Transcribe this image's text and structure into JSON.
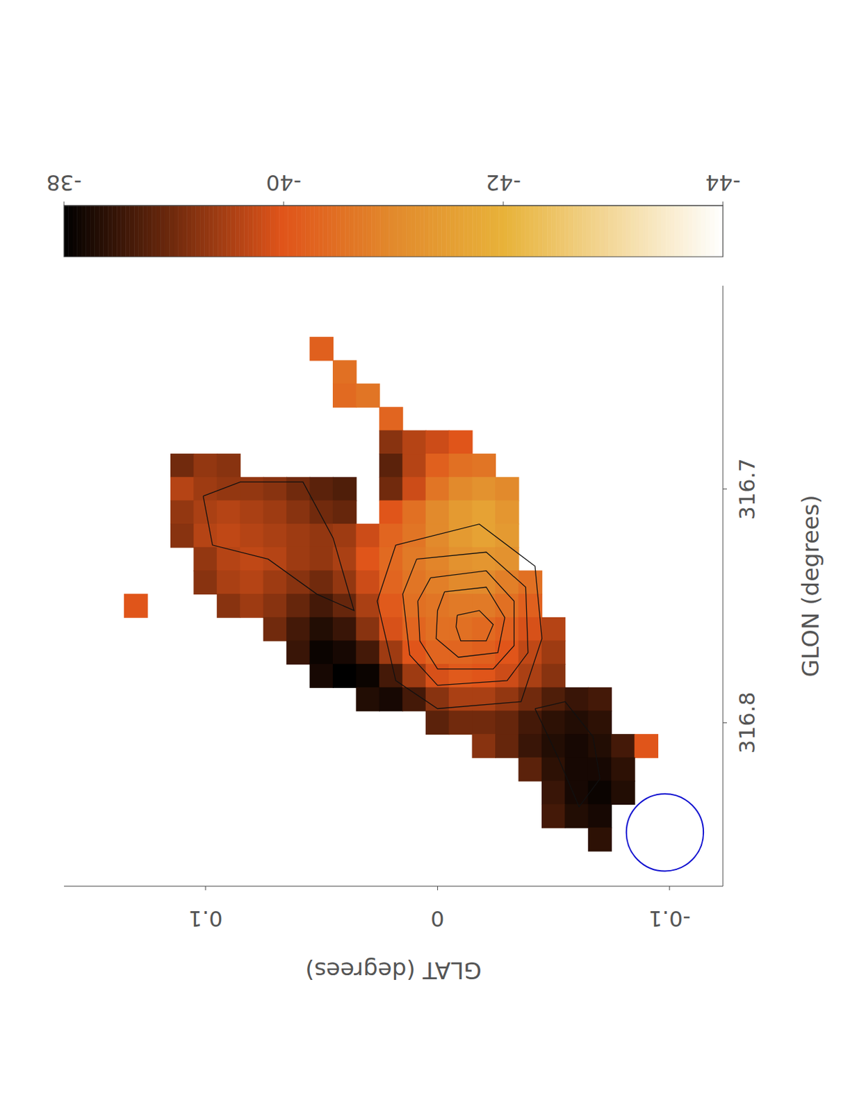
{
  "chart_data": {
    "type": "heatmap",
    "x_label": "GLON (degrees)",
    "y_label": "GLAT (degrees)",
    "xlim": [
      316.87,
      316.613
    ],
    "xticks": [
      316.8,
      316.7
    ],
    "ylim": [
      -0.123,
      0.161
    ],
    "yticks": [
      -0.1,
      0,
      0.1
    ],
    "colorbar": {
      "range": [
        -44,
        -38
      ],
      "ticks": [
        -38,
        -40,
        -42,
        -44
      ]
    },
    "beam": {
      "glon": 316.847,
      "glat": -0.098,
      "diameter": 0.033
    },
    "cells": [
      [
        316.64,
        0.05,
        -40.2
      ],
      [
        316.65,
        0.04,
        -40.5
      ],
      [
        316.66,
        0.04,
        -40.4
      ],
      [
        316.66,
        0.03,
        -40.6
      ],
      [
        316.67,
        0.02,
        -40.3
      ],
      [
        316.68,
        0.02,
        -39.2
      ],
      [
        316.68,
        0.01,
        -39.6
      ],
      [
        316.68,
        0.0,
        -39.8
      ],
      [
        316.68,
        -0.01,
        -40.0
      ],
      [
        316.69,
        0.11,
        -39.0
      ],
      [
        316.69,
        0.1,
        -39.3
      ],
      [
        316.69,
        0.09,
        -39.2
      ],
      [
        316.69,
        0.02,
        -38.8
      ],
      [
        316.69,
        0.01,
        -39.6
      ],
      [
        316.69,
        0.0,
        -40.2
      ],
      [
        316.69,
        -0.01,
        -40.5
      ],
      [
        316.69,
        -0.02,
        -40.6
      ],
      [
        316.7,
        0.11,
        -39.6
      ],
      [
        316.7,
        0.1,
        -39.4
      ],
      [
        316.7,
        0.09,
        -39.3
      ],
      [
        316.7,
        0.08,
        -39.3
      ],
      [
        316.7,
        0.07,
        -39.2
      ],
      [
        316.7,
        0.06,
        -39.0
      ],
      [
        316.7,
        0.05,
        -38.8
      ],
      [
        316.7,
        0.04,
        -38.7
      ],
      [
        316.7,
        0.02,
        -39.0
      ],
      [
        316.7,
        0.01,
        -39.8
      ],
      [
        316.7,
        0.0,
        -40.6
      ],
      [
        316.7,
        -0.01,
        -41.0
      ],
      [
        316.7,
        -0.02,
        -41.2
      ],
      [
        316.7,
        -0.03,
        -41.0
      ],
      [
        316.71,
        0.11,
        -39.3
      ],
      [
        316.71,
        0.1,
        -39.5
      ],
      [
        316.71,
        0.09,
        -39.6
      ],
      [
        316.71,
        0.08,
        -39.5
      ],
      [
        316.71,
        0.07,
        -39.4
      ],
      [
        316.71,
        0.06,
        -39.2
      ],
      [
        316.71,
        0.05,
        -39.0
      ],
      [
        316.71,
        0.04,
        -38.9
      ],
      [
        316.71,
        0.02,
        -40.0
      ],
      [
        316.71,
        0.01,
        -40.5
      ],
      [
        316.71,
        0.0,
        -41.0
      ],
      [
        316.71,
        -0.01,
        -41.4
      ],
      [
        316.71,
        -0.02,
        -41.6
      ],
      [
        316.71,
        -0.03,
        -41.3
      ],
      [
        316.72,
        0.11,
        -39.2
      ],
      [
        316.72,
        0.1,
        -39.6
      ],
      [
        316.72,
        0.09,
        -39.7
      ],
      [
        316.72,
        0.08,
        -39.6
      ],
      [
        316.72,
        0.07,
        -39.5
      ],
      [
        316.72,
        0.06,
        -39.4
      ],
      [
        316.72,
        0.05,
        -39.3
      ],
      [
        316.72,
        0.04,
        -39.4
      ],
      [
        316.72,
        0.03,
        -39.8
      ],
      [
        316.72,
        0.02,
        -40.3
      ],
      [
        316.72,
        0.01,
        -40.6
      ],
      [
        316.72,
        0.0,
        -41.0
      ],
      [
        316.72,
        -0.01,
        -41.4
      ],
      [
        316.72,
        -0.02,
        -41.6
      ],
      [
        316.72,
        -0.03,
        -41.4
      ],
      [
        316.73,
        0.1,
        -39.3
      ],
      [
        316.73,
        0.09,
        -39.6
      ],
      [
        316.73,
        0.08,
        -39.7
      ],
      [
        316.73,
        0.07,
        -39.6
      ],
      [
        316.73,
        0.06,
        -39.4
      ],
      [
        316.73,
        0.05,
        -39.3
      ],
      [
        316.73,
        0.04,
        -39.5
      ],
      [
        316.73,
        0.03,
        -40.0
      ],
      [
        316.73,
        0.02,
        -40.4
      ],
      [
        316.73,
        0.01,
        -40.7
      ],
      [
        316.73,
        0.0,
        -40.9
      ],
      [
        316.73,
        -0.01,
        -41.2
      ],
      [
        316.73,
        -0.02,
        -41.3
      ],
      [
        316.73,
        -0.03,
        -41.2
      ],
      [
        316.74,
        0.1,
        -39.2
      ],
      [
        316.74,
        0.09,
        -39.5
      ],
      [
        316.74,
        0.08,
        -39.6
      ],
      [
        316.74,
        0.07,
        -39.4
      ],
      [
        316.74,
        0.06,
        -39.2
      ],
      [
        316.74,
        0.05,
        -39.0
      ],
      [
        316.74,
        0.04,
        -39.3
      ],
      [
        316.74,
        0.03,
        -39.8
      ],
      [
        316.74,
        0.02,
        -40.3
      ],
      [
        316.74,
        0.01,
        -40.6
      ],
      [
        316.74,
        0.0,
        -40.8
      ],
      [
        316.74,
        -0.01,
        -41.0
      ],
      [
        316.74,
        -0.02,
        -41.0
      ],
      [
        316.74,
        -0.03,
        -40.8
      ],
      [
        316.74,
        -0.04,
        -40.5
      ],
      [
        316.75,
        0.13,
        -40.0
      ],
      [
        316.75,
        0.09,
        -39.2
      ],
      [
        316.75,
        0.08,
        -39.4
      ],
      [
        316.75,
        0.07,
        -39.2
      ],
      [
        316.75,
        0.06,
        -38.9
      ],
      [
        316.75,
        0.05,
        -38.6
      ],
      [
        316.75,
        0.04,
        -38.9
      ],
      [
        316.75,
        0.03,
        -39.5
      ],
      [
        316.75,
        0.02,
        -40.1
      ],
      [
        316.75,
        0.01,
        -40.5
      ],
      [
        316.75,
        0.0,
        -40.6
      ],
      [
        316.75,
        -0.01,
        -40.7
      ],
      [
        316.75,
        -0.02,
        -40.7
      ],
      [
        316.75,
        -0.03,
        -40.5
      ],
      [
        316.75,
        -0.04,
        -40.2
      ],
      [
        316.76,
        0.07,
        -39.0
      ],
      [
        316.76,
        0.06,
        -38.6
      ],
      [
        316.76,
        0.05,
        -38.3
      ],
      [
        316.76,
        0.04,
        -38.5
      ],
      [
        316.76,
        0.03,
        -39.2
      ],
      [
        316.76,
        0.02,
        -39.9
      ],
      [
        316.76,
        0.01,
        -40.3
      ],
      [
        316.76,
        0.0,
        -40.5
      ],
      [
        316.76,
        -0.01,
        -40.5
      ],
      [
        316.76,
        -0.02,
        -40.4
      ],
      [
        316.76,
        -0.03,
        -40.2
      ],
      [
        316.76,
        -0.04,
        -39.9
      ],
      [
        316.76,
        -0.05,
        -39.6
      ],
      [
        316.77,
        0.06,
        -38.5
      ],
      [
        316.77,
        0.05,
        -38.1
      ],
      [
        316.77,
        0.04,
        -38.2
      ],
      [
        316.77,
        0.03,
        -38.6
      ],
      [
        316.77,
        0.02,
        -39.4
      ],
      [
        316.77,
        0.01,
        -40.0
      ],
      [
        316.77,
        0.0,
        -40.3
      ],
      [
        316.77,
        -0.01,
        -40.3
      ],
      [
        316.77,
        -0.02,
        -40.2
      ],
      [
        316.77,
        -0.03,
        -40.0
      ],
      [
        316.77,
        -0.04,
        -39.7
      ],
      [
        316.77,
        -0.05,
        -39.4
      ],
      [
        316.78,
        0.05,
        -38.2
      ],
      [
        316.78,
        0.04,
        -38.0
      ],
      [
        316.78,
        0.03,
        -38.1
      ],
      [
        316.78,
        0.02,
        -38.6
      ],
      [
        316.78,
        0.01,
        -39.4
      ],
      [
        316.78,
        0.0,
        -39.9
      ],
      [
        316.78,
        -0.01,
        -40.1
      ],
      [
        316.78,
        -0.02,
        -40.0
      ],
      [
        316.78,
        -0.03,
        -39.8
      ],
      [
        316.78,
        -0.04,
        -39.5
      ],
      [
        316.78,
        -0.05,
        -39.2
      ],
      [
        316.79,
        0.03,
        -38.3
      ],
      [
        316.79,
        0.02,
        -38.2
      ],
      [
        316.79,
        0.01,
        -38.6
      ],
      [
        316.79,
        0.0,
        -39.2
      ],
      [
        316.79,
        -0.01,
        -39.5
      ],
      [
        316.79,
        -0.02,
        -39.5
      ],
      [
        316.79,
        -0.03,
        -39.3
      ],
      [
        316.79,
        -0.04,
        -39.0
      ],
      [
        316.79,
        -0.05,
        -38.7
      ],
      [
        316.79,
        -0.06,
        -38.5
      ],
      [
        316.79,
        -0.07,
        -38.6
      ],
      [
        316.8,
        0.0,
        -38.8
      ],
      [
        316.8,
        -0.01,
        -39.0
      ],
      [
        316.8,
        -0.02,
        -39.0
      ],
      [
        316.8,
        -0.03,
        -38.9
      ],
      [
        316.8,
        -0.04,
        -38.6
      ],
      [
        316.8,
        -0.05,
        -38.4
      ],
      [
        316.8,
        -0.06,
        -38.3
      ],
      [
        316.8,
        -0.07,
        -38.4
      ],
      [
        316.81,
        -0.02,
        -39.2
      ],
      [
        316.81,
        -0.03,
        -38.9
      ],
      [
        316.81,
        -0.04,
        -38.5
      ],
      [
        316.81,
        -0.05,
        -38.3
      ],
      [
        316.81,
        -0.06,
        -38.2
      ],
      [
        316.81,
        -0.07,
        -38.3
      ],
      [
        316.81,
        -0.08,
        -38.6
      ],
      [
        316.81,
        -0.09,
        -40.0
      ],
      [
        316.82,
        -0.04,
        -38.8
      ],
      [
        316.82,
        -0.05,
        -38.4
      ],
      [
        316.82,
        -0.06,
        -38.2
      ],
      [
        316.82,
        -0.07,
        -38.2
      ],
      [
        316.82,
        -0.08,
        -38.4
      ],
      [
        316.83,
        -0.05,
        -38.5
      ],
      [
        316.83,
        -0.06,
        -38.2
      ],
      [
        316.83,
        -0.07,
        -38.1
      ],
      [
        316.83,
        -0.08,
        -38.3
      ],
      [
        316.84,
        -0.05,
        -38.6
      ],
      [
        316.84,
        -0.06,
        -38.3
      ],
      [
        316.84,
        -0.07,
        -38.2
      ],
      [
        316.85,
        -0.07,
        -38.4
      ]
    ],
    "contours": [
      [
        [
          316.754,
          -0.0085
        ],
        [
          316.752,
          -0.018
        ],
        [
          316.758,
          -0.024
        ],
        [
          316.765,
          -0.021
        ],
        [
          316.765,
          -0.01
        ],
        [
          316.759,
          -0.008
        ]
      ],
      [
        [
          316.744,
          -0.003
        ],
        [
          316.742,
          -0.021
        ],
        [
          316.755,
          -0.029
        ],
        [
          316.77,
          -0.026
        ],
        [
          316.772,
          -0.009
        ],
        [
          316.764,
          0.0006
        ],
        [
          316.752,
          0.0
        ]
      ],
      [
        [
          316.738,
          0.003
        ],
        [
          316.735,
          -0.021
        ],
        [
          316.748,
          -0.033
        ],
        [
          316.767,
          -0.033
        ],
        [
          316.777,
          -0.024
        ],
        [
          316.777,
          0.0
        ],
        [
          316.765,
          0.0076
        ],
        [
          316.748,
          0.0085
        ]
      ],
      [
        [
          316.73,
          0.009
        ],
        [
          316.727,
          -0.021
        ],
        [
          316.742,
          -0.038
        ],
        [
          316.77,
          -0.039
        ],
        [
          316.782,
          -0.03
        ],
        [
          316.784,
          0.0
        ],
        [
          316.771,
          0.012
        ],
        [
          316.745,
          0.015
        ]
      ],
      [
        [
          316.724,
          0.018
        ],
        [
          316.715,
          -0.018
        ],
        [
          316.733,
          -0.042
        ],
        [
          316.764,
          -0.045
        ],
        [
          316.791,
          -0.036
        ],
        [
          316.794,
          0.0
        ],
        [
          316.782,
          0.018
        ],
        [
          316.748,
          0.026
        ]
      ],
      [
        [
          316.703,
          0.101
        ],
        [
          316.697,
          0.085
        ],
        [
          316.697,
          0.058
        ],
        [
          316.721,
          0.045
        ],
        [
          316.752,
          0.036
        ],
        [
          316.745,
          0.052
        ],
        [
          316.73,
          0.073
        ],
        [
          316.724,
          0.097
        ]
      ],
      [
        [
          316.794,
          -0.042
        ],
        [
          316.815,
          -0.052
        ],
        [
          316.836,
          -0.061
        ],
        [
          316.824,
          -0.07
        ],
        [
          316.806,
          -0.067
        ],
        [
          316.791,
          -0.055
        ]
      ]
    ]
  }
}
